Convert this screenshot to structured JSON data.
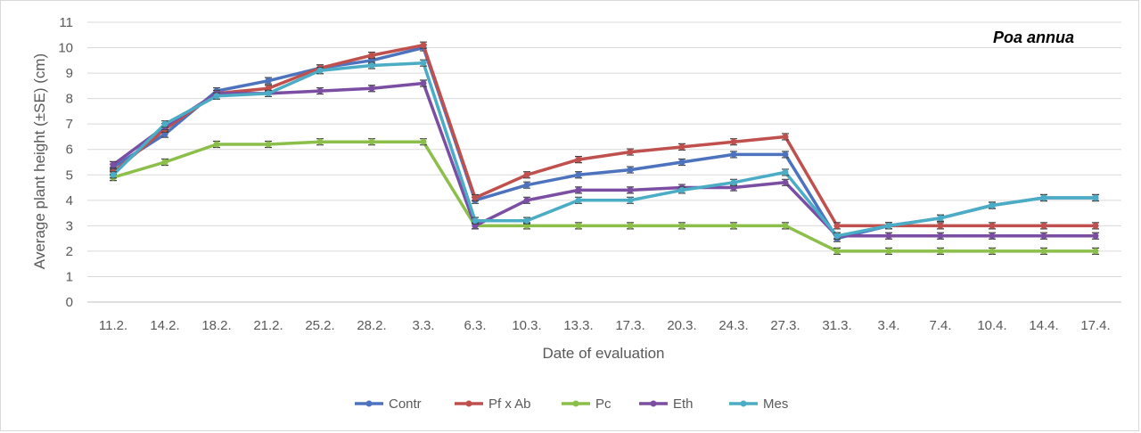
{
  "chart_data": {
    "type": "line",
    "title": "Poa annua",
    "xlabel": "Date of evaluation",
    "ylabel": "Average plant height (±SE) (cm)",
    "ylim": [
      0,
      11
    ],
    "y_ticks": [
      0,
      1,
      2,
      3,
      4,
      5,
      6,
      7,
      8,
      9,
      10,
      11
    ],
    "grid": true,
    "legend_position": "bottom",
    "categories": [
      "11.2.",
      "14.2.",
      "18.2.",
      "21.2.",
      "25.2.",
      "28.2.",
      "3.3.",
      "6.3.",
      "10.3.",
      "13.3.",
      "17.3.",
      "20.3.",
      "24.3.",
      "27.3.",
      "31.3.",
      "3.4.",
      "7.4.",
      "10.4.",
      "14.4.",
      "17.4."
    ],
    "series": [
      {
        "name": "Contr",
        "color": "#4e73be",
        "values": [
          5.3,
          6.6,
          8.3,
          8.7,
          9.2,
          9.5,
          10.0,
          4.0,
          4.6,
          5.0,
          5.2,
          5.5,
          5.8,
          5.8,
          2.5,
          3.0,
          3.3,
          3.8,
          4.1,
          4.1
        ]
      },
      {
        "name": "Pf x Ab",
        "color": "#c0504d",
        "values": [
          5.1,
          6.8,
          8.2,
          8.4,
          9.2,
          9.7,
          10.1,
          4.1,
          5.0,
          5.6,
          5.9,
          6.1,
          6.3,
          6.5,
          3.0,
          3.0,
          3.0,
          3.0,
          3.0,
          3.0
        ]
      },
      {
        "name": "Pc",
        "color": "#8cbf4a",
        "values": [
          4.9,
          5.5,
          6.2,
          6.2,
          6.3,
          6.3,
          6.3,
          3.0,
          3.0,
          3.0,
          3.0,
          3.0,
          3.0,
          3.0,
          2.0,
          2.0,
          2.0,
          2.0,
          2.0,
          2.0
        ]
      },
      {
        "name": "Eth",
        "color": "#7b4ea3",
        "values": [
          5.4,
          6.9,
          8.2,
          8.2,
          8.3,
          8.4,
          8.6,
          3.0,
          4.0,
          4.4,
          4.4,
          4.5,
          4.5,
          4.7,
          2.6,
          2.6,
          2.6,
          2.6,
          2.6,
          2.6
        ]
      },
      {
        "name": "Mes",
        "color": "#4bacc6",
        "values": [
          5.0,
          7.0,
          8.1,
          8.2,
          9.1,
          9.3,
          9.4,
          3.2,
          3.2,
          4.0,
          4.0,
          4.4,
          4.7,
          5.1,
          2.6,
          3.0,
          3.3,
          3.8,
          4.1,
          4.1
        ]
      }
    ]
  }
}
